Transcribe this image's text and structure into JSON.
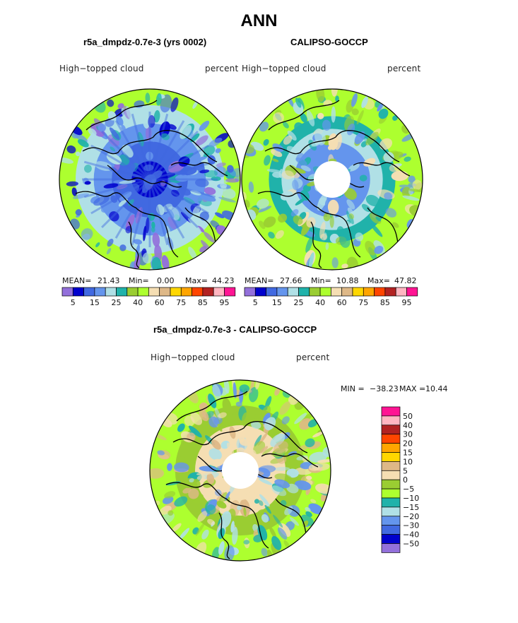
{
  "page": {
    "title": "ANN"
  },
  "palette_colors": [
    "#9370db",
    "#0000cd",
    "#4169e1",
    "#6495ed",
    "#b0e0e6",
    "#20b2aa",
    "#9acd32",
    "#adff2f",
    "#f5deb3",
    "#deb887",
    "#ffd700",
    "#ffa500",
    "#ff4500",
    "#b22222",
    "#ffb6c1",
    "#ff1493"
  ],
  "chart_data": [
    {
      "type": "heatmap",
      "projection": "north-polar-stereographic",
      "title": "r5a_dmpdz-0.7e-3 (yrs 0002)",
      "variable": "High−topped cloud",
      "units": "percent",
      "stats": {
        "mean_label": "MEAN=",
        "mean": "21.43",
        "min_label": "Min=",
        "min": "0.00",
        "max_label": "Max=",
        "max": "44.23"
      },
      "colorbar_levels": [
        5,
        10,
        15,
        20,
        25,
        30,
        40,
        50,
        60,
        70,
        75,
        80,
        85,
        90,
        95
      ],
      "colorbar_tick_labels": [
        "5",
        "15",
        "25",
        "40",
        "60",
        "75",
        "85",
        "95"
      ],
      "has_missing_pole": false
    },
    {
      "type": "heatmap",
      "projection": "north-polar-stereographic",
      "title": "CALIPSO-GOCCP",
      "variable": "High−topped cloud",
      "units": "percent",
      "stats": {
        "mean_label": "MEAN=",
        "mean": "27.66",
        "min_label": "Min=",
        "min": "10.88",
        "max_label": "Max=",
        "max": "47.82"
      },
      "colorbar_levels": [
        5,
        10,
        15,
        20,
        25,
        30,
        40,
        50,
        60,
        70,
        75,
        80,
        85,
        90,
        95
      ],
      "colorbar_tick_labels": [
        "5",
        "15",
        "25",
        "40",
        "60",
        "75",
        "85",
        "95"
      ],
      "has_missing_pole": true
    },
    {
      "type": "heatmap",
      "projection": "north-polar-stereographic",
      "title": "r5a_dmpdz-0.7e-3 - CALIPSO-GOCCP",
      "variable": "High−topped cloud",
      "units": "percent",
      "stats": {
        "min_label": "MIN =",
        "min": "−38.23",
        "max_label": "MAX =",
        "max": "10.44"
      },
      "colorbar_levels": [
        50,
        40,
        30,
        20,
        15,
        10,
        5,
        0,
        -5,
        -10,
        -15,
        -20,
        -30,
        -40,
        -50
      ],
      "colorbar_tick_labels": [
        "50",
        "40",
        "30",
        "20",
        "15",
        "10",
        "5",
        "0",
        "−5",
        "−10",
        "−15",
        "−20",
        "−30",
        "−40",
        "−50"
      ],
      "colorbar_colors": [
        "#ff1493",
        "#ffb6c1",
        "#b22222",
        "#ff4500",
        "#ffa500",
        "#ffd700",
        "#deb887",
        "#f5deb3",
        "#9acd32",
        "#adff2f",
        "#20b2aa",
        "#b0e0e6",
        "#6495ed",
        "#4169e1",
        "#0000cd",
        "#9370db"
      ],
      "has_missing_pole": true
    }
  ]
}
